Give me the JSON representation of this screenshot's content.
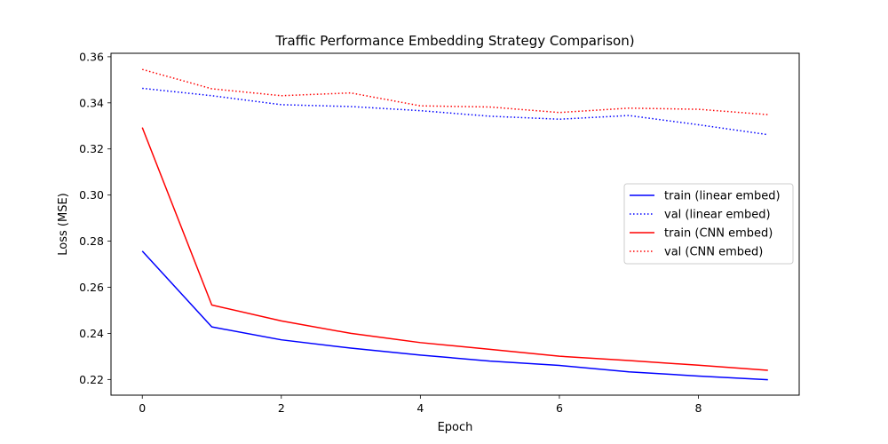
{
  "chart_data": {
    "type": "line",
    "title": "Traffic Performance Embedding Strategy Comparison)",
    "xlabel": "Epoch",
    "ylabel": "Loss (MSE)",
    "xlim": [
      -0.45,
      9.45
    ],
    "ylim": [
      0.2132,
      0.3615
    ],
    "xticks": [
      0,
      2,
      4,
      6,
      8
    ],
    "xtick_labels": [
      "0",
      "2",
      "4",
      "6",
      "8"
    ],
    "yticks": [
      0.22,
      0.24,
      0.26,
      0.28,
      0.3,
      0.32,
      0.34,
      0.36
    ],
    "ytick_labels": [
      "0.22",
      "0.24",
      "0.26",
      "0.28",
      "0.30",
      "0.32",
      "0.34",
      "0.36"
    ],
    "grid": false,
    "legend_position": "center-right",
    "x": [
      0,
      1,
      2,
      3,
      4,
      5,
      6,
      7,
      8,
      9
    ],
    "series": [
      {
        "name": "train (linear embed)",
        "color": "#0000ff",
        "style": "solid",
        "values": [
          0.2757,
          0.2428,
          0.2372,
          0.2336,
          0.2306,
          0.228,
          0.2261,
          0.2233,
          0.2215,
          0.2199
        ]
      },
      {
        "name": "val (linear embed)",
        "color": "#0000ff",
        "style": "dotted",
        "values": [
          0.3463,
          0.3431,
          0.3392,
          0.3384,
          0.3366,
          0.3342,
          0.3329,
          0.3345,
          0.3305,
          0.3262
        ]
      },
      {
        "name": "train (CNN embed)",
        "color": "#ff0000",
        "style": "solid",
        "values": [
          0.3293,
          0.2523,
          0.2454,
          0.24,
          0.236,
          0.2331,
          0.2301,
          0.2282,
          0.2262,
          0.224
        ]
      },
      {
        "name": "val (CNN embed)",
        "color": "#ff0000",
        "style": "dotted",
        "values": [
          0.3545,
          0.3461,
          0.3431,
          0.3443,
          0.3387,
          0.3382,
          0.3358,
          0.3377,
          0.3372,
          0.3349
        ]
      }
    ]
  }
}
